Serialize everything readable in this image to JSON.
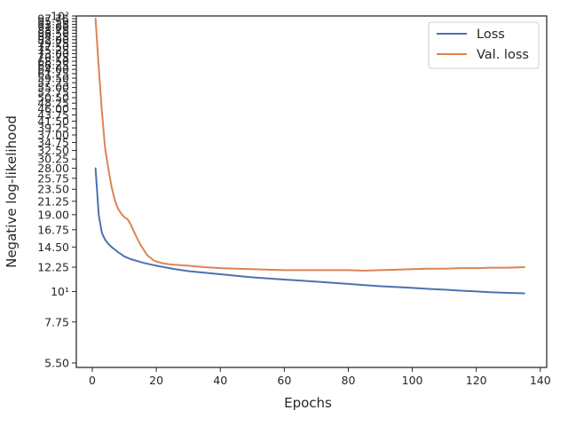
{
  "chart_data": {
    "type": "line",
    "xlabel": "Epochs",
    "ylabel": "Negative log-likelihood",
    "xlim": [
      -5,
      142
    ],
    "ylim": [
      5.3,
      100
    ],
    "y_scale": "log",
    "grid": false,
    "legend": "top-right",
    "x_ticks": [
      0,
      20,
      40,
      60,
      80,
      100,
      120,
      140
    ],
    "x_tick_labels": [
      "0",
      "20",
      "40",
      "60",
      "80",
      "100",
      "120",
      "140"
    ],
    "y_ticks": [
      5.5,
      7.75,
      10,
      12.25,
      14.5,
      16.75,
      19,
      21.25,
      23.5,
      25.75,
      28,
      30.25,
      32.5,
      34.75,
      37,
      39.25,
      41.5,
      43.75,
      46,
      48.25,
      50.5,
      52.75,
      55,
      57.25,
      59.5,
      61.75,
      64,
      66.25,
      68.5,
      70.75,
      73,
      75.25,
      77.5,
      79.75,
      82,
      84.25,
      86.5,
      88.75,
      91,
      93.25,
      95.5,
      97.75,
      100
    ],
    "y_tick_labels": [
      "5.50",
      "7.75",
      "10¹",
      "12.25",
      "14.50",
      "16.75",
      "19.00",
      "21.25",
      "23.50",
      "25.75",
      "28.00",
      "30.25",
      "32.50",
      "34.75",
      "37.00",
      "39.25",
      "41.50",
      "43.75",
      "46.00",
      "48.25",
      "50.50",
      "52.75",
      "55.00",
      "57.25",
      "59.50",
      "61.75",
      "64.00",
      "66.25",
      "68.50",
      "70.75",
      "73.00",
      "75.25",
      "77.50",
      "79.75",
      "82.00",
      "84.25",
      "86.50",
      "88.75",
      "91.00",
      "93.25",
      "95.50",
      "97.75",
      "10²"
    ],
    "series": [
      {
        "name": "Loss",
        "color": "#4c72b0",
        "x": [
          1,
          2,
          3,
          4,
          5,
          6,
          7,
          8,
          9,
          10,
          12,
          14,
          16,
          18,
          20,
          25,
          30,
          35,
          40,
          45,
          50,
          55,
          60,
          65,
          70,
          75,
          80,
          85,
          90,
          95,
          100,
          105,
          110,
          115,
          120,
          125,
          130,
          135
        ],
        "y": [
          28,
          19,
          16.3,
          15.4,
          14.9,
          14.5,
          14.2,
          13.9,
          13.65,
          13.4,
          13.1,
          12.9,
          12.7,
          12.55,
          12.4,
          12.1,
          11.85,
          11.7,
          11.55,
          11.4,
          11.25,
          11.15,
          11.05,
          10.95,
          10.85,
          10.75,
          10.65,
          10.55,
          10.45,
          10.38,
          10.3,
          10.22,
          10.15,
          10.07,
          10.0,
          9.93,
          9.88,
          9.85
        ]
      },
      {
        "name": "Val. loss",
        "color": "#dd8452",
        "x": [
          1,
          2,
          3,
          4,
          5,
          6,
          7,
          8,
          9,
          10,
          11,
          12,
          13,
          14,
          15,
          16,
          17,
          18,
          19,
          20,
          22,
          24,
          26,
          28,
          30,
          35,
          40,
          45,
          50,
          55,
          60,
          65,
          70,
          75,
          80,
          85,
          90,
          95,
          100,
          105,
          110,
          115,
          120,
          125,
          130,
          135
        ],
        "y": [
          98,
          65,
          45,
          33,
          28,
          24,
          21.5,
          20,
          19.2,
          18.6,
          18.3,
          17.5,
          16.5,
          15.6,
          14.8,
          14.2,
          13.6,
          13.3,
          13.0,
          12.85,
          12.65,
          12.55,
          12.5,
          12.45,
          12.4,
          12.25,
          12.15,
          12.1,
          12.05,
          12.0,
          11.95,
          11.95,
          11.95,
          11.95,
          11.95,
          11.9,
          11.95,
          12.0,
          12.05,
          12.1,
          12.1,
          12.15,
          12.15,
          12.2,
          12.2,
          12.25
        ]
      }
    ]
  }
}
